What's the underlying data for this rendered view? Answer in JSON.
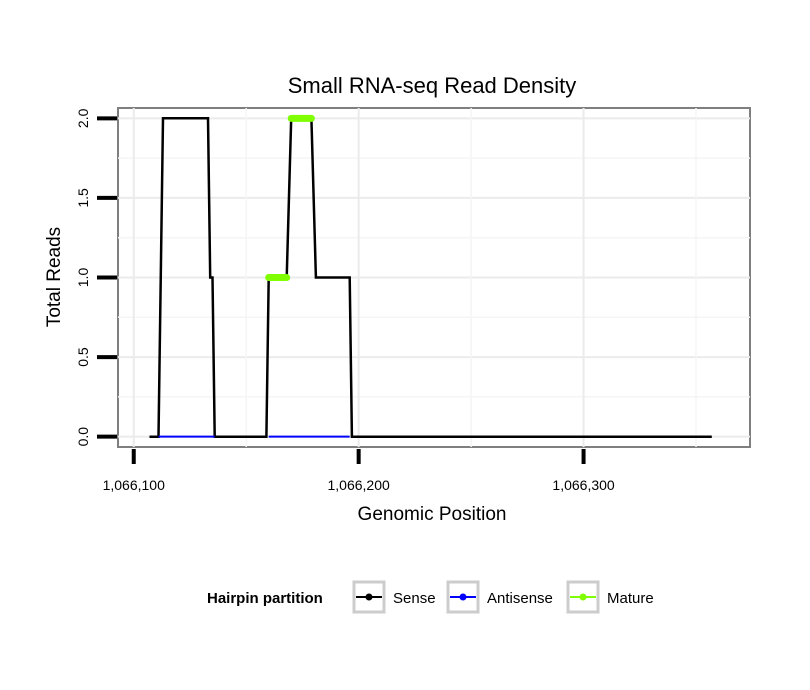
{
  "chart_data": {
    "type": "line",
    "title": "Small RNA-seq Read Density",
    "xlabel": "Genomic Position",
    "ylabel": "Total Reads",
    "xlim": [
      1066093,
      1066374
    ],
    "ylim": [
      -0.065,
      2.065
    ],
    "x_ticks": [
      1066100,
      1066200,
      1066300
    ],
    "x_tick_labels": [
      "1,066,100",
      "1,066,200",
      "1,066,300"
    ],
    "y_ticks": [
      0,
      0.5,
      1,
      1.5,
      2
    ],
    "y_tick_labels": [
      "0.0",
      "0.5",
      "1.0",
      "1.5",
      "2.0"
    ],
    "grid": true,
    "legend": {
      "title": "Hairpin partition",
      "position": "bottom",
      "entries": [
        {
          "label": "Sense",
          "color": "#000000"
        },
        {
          "label": "Antisense",
          "color": "#0000ff"
        },
        {
          "label": "Mature",
          "color": "#7fff00"
        }
      ]
    },
    "series": [
      {
        "name": "Sense",
        "color": "#000000",
        "x": [
          1066107,
          1066111,
          1066113,
          1066133,
          1066134,
          1066135,
          1066136,
          1066159,
          1066160,
          1066168,
          1066170,
          1066179,
          1066181,
          1066196,
          1066197,
          1066357
        ],
        "y": [
          0,
          0,
          2,
          2,
          1,
          1,
          0,
          0,
          1,
          1,
          2,
          2,
          1,
          1,
          0,
          0
        ]
      },
      {
        "name": "Antisense",
        "color": "#0000ff",
        "x": [
          1066111,
          1066136
        ],
        "y": [
          0,
          0
        ],
        "x2": [
          1066160,
          1066196
        ],
        "y2": [
          0,
          0
        ]
      },
      {
        "name": "Mature",
        "color": "#7fff00",
        "segments": [
          {
            "x": [
              1066160,
              1066168
            ],
            "y": 1
          },
          {
            "x": [
              1066170,
              1066179
            ],
            "y": 2
          }
        ]
      }
    ]
  }
}
